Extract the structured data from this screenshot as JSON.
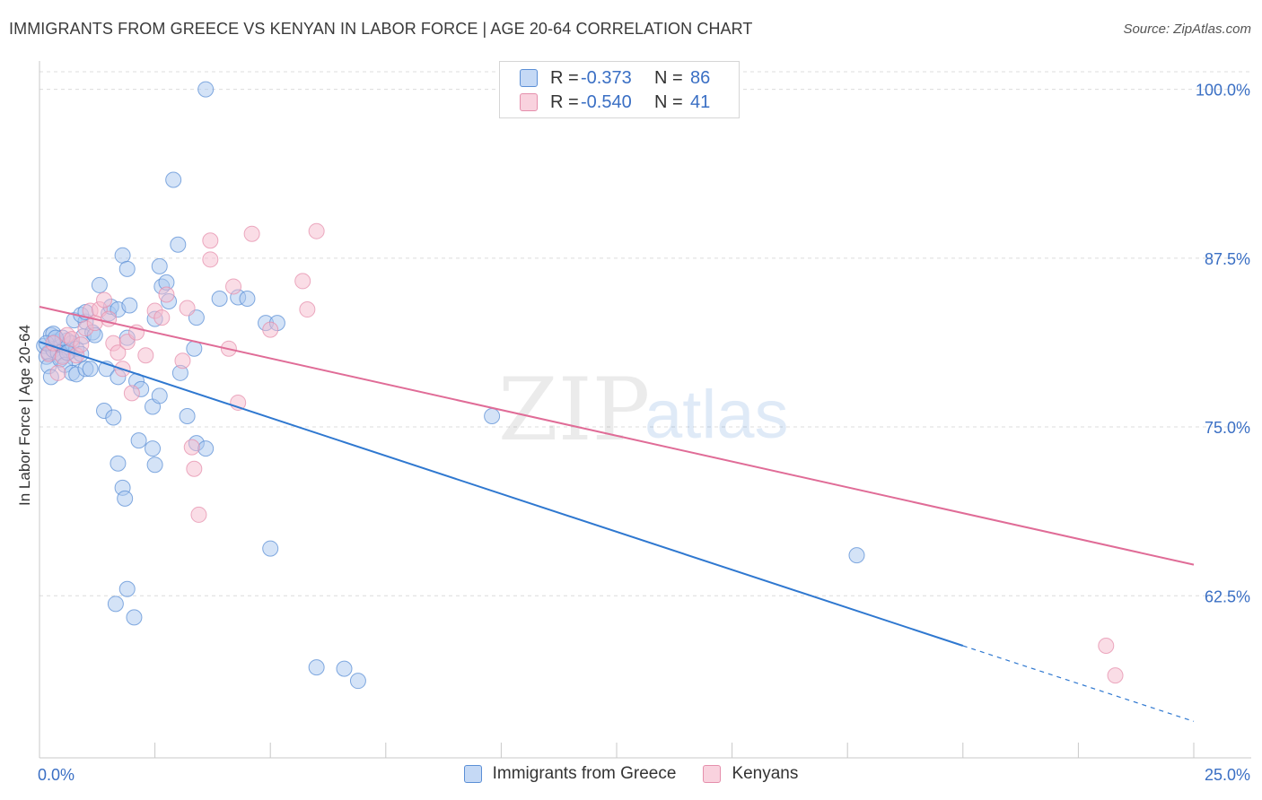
{
  "title": "IMMIGRANTS FROM GREECE VS KENYAN IN LABOR FORCE | AGE 20-64 CORRELATION CHART",
  "source": "Source: ZipAtlas.com",
  "watermark": {
    "zip": "ZIP",
    "atlas": "atlas"
  },
  "legend_top": [
    {
      "r_label": "R =",
      "r_value": "-0.373",
      "n_label": "N =",
      "n_value": "86"
    },
    {
      "r_label": "R =",
      "r_value": "-0.540",
      "n_label": "N =",
      "n_value": "41"
    }
  ],
  "legend_bottom": [
    {
      "label": "Immigrants from Greece"
    },
    {
      "label": "Kenyans"
    }
  ],
  "colors": {
    "blue_fill": "#a9c7ef",
    "blue_stroke": "#5b8fd6",
    "blue_line": "#2f78d0",
    "pink_fill": "#f6bccd",
    "pink_stroke": "#e58fac",
    "pink_line": "#e06c97",
    "tick_label": "#3a6fc4",
    "grid": "#dcdcdc"
  },
  "chart_data": {
    "type": "scatter",
    "title": "IMMIGRANTS FROM GREECE VS KENYAN IN LABOR FORCE | AGE 20-64 CORRELATION CHART",
    "xlabel": "",
    "ylabel": "In Labor Force | Age 20-64",
    "xlim": [
      0,
      25
    ],
    "ylim": [
      50.5,
      101.3
    ],
    "x_tick_labels": [
      {
        "value": 0,
        "label": "0.0%"
      },
      {
        "value": 25,
        "label": "25.0%"
      }
    ],
    "y_tick_labels": [
      {
        "value": 100,
        "label": "100.0%"
      },
      {
        "value": 87.5,
        "label": "87.5%"
      },
      {
        "value": 75,
        "label": "75.0%"
      },
      {
        "value": 62.5,
        "label": "62.5%"
      }
    ],
    "series": [
      {
        "name": "Immigrants from Greece",
        "r": -0.373,
        "n": 86,
        "trend": {
          "x0": 0,
          "y0": 81.3,
          "x1": 20,
          "y1": 58.8,
          "dash_to_x": 25,
          "dash_to_y": 53.2
        },
        "points": [
          [
            0.1,
            81.0
          ],
          [
            0.15,
            80.2
          ],
          [
            0.2,
            80.5
          ],
          [
            0.25,
            81.8
          ],
          [
            0.3,
            80.7
          ],
          [
            0.35,
            81.3
          ],
          [
            0.4,
            80.5
          ],
          [
            0.45,
            81.1
          ],
          [
            0.5,
            80.3
          ],
          [
            0.55,
            80.9
          ],
          [
            0.6,
            81.4
          ],
          [
            0.65,
            80.6
          ],
          [
            0.7,
            81.2
          ],
          [
            0.75,
            80.1
          ],
          [
            0.8,
            80.8
          ],
          [
            0.3,
            81.9
          ],
          [
            0.5,
            81.6
          ],
          [
            0.2,
            79.5
          ],
          [
            0.25,
            78.7
          ],
          [
            0.45,
            80.0
          ],
          [
            0.55,
            79.6
          ],
          [
            0.7,
            79.0
          ],
          [
            0.8,
            78.9
          ],
          [
            0.9,
            80.4
          ],
          [
            1.0,
            79.3
          ],
          [
            1.1,
            79.3
          ],
          [
            0.15,
            81.2
          ],
          [
            0.35,
            81.6
          ],
          [
            0.6,
            80.5
          ],
          [
            0.95,
            81.7
          ],
          [
            0.75,
            82.9
          ],
          [
            1.0,
            82.8
          ],
          [
            1.15,
            82.0
          ],
          [
            1.2,
            81.8
          ],
          [
            0.9,
            83.3
          ],
          [
            1.0,
            83.5
          ],
          [
            1.5,
            83.4
          ],
          [
            1.55,
            83.9
          ],
          [
            1.7,
            83.7
          ],
          [
            1.9,
            81.6
          ],
          [
            2.5,
            83.0
          ],
          [
            1.3,
            85.5
          ],
          [
            1.8,
            87.7
          ],
          [
            1.9,
            86.7
          ],
          [
            2.6,
            86.9
          ],
          [
            2.65,
            85.4
          ],
          [
            2.75,
            85.7
          ],
          [
            2.8,
            84.3
          ],
          [
            3.0,
            88.5
          ],
          [
            2.9,
            93.3
          ],
          [
            3.35,
            80.8
          ],
          [
            3.4,
            83.1
          ],
          [
            3.9,
            84.5
          ],
          [
            4.3,
            84.6
          ],
          [
            4.9,
            82.7
          ],
          [
            5.15,
            82.7
          ],
          [
            3.6,
            100.0
          ],
          [
            1.45,
            79.3
          ],
          [
            1.7,
            78.7
          ],
          [
            2.1,
            78.4
          ],
          [
            2.2,
            77.8
          ],
          [
            2.45,
            76.5
          ],
          [
            2.6,
            77.3
          ],
          [
            3.05,
            79.0
          ],
          [
            3.2,
            75.8
          ],
          [
            1.4,
            76.2
          ],
          [
            1.6,
            75.7
          ],
          [
            1.7,
            72.3
          ],
          [
            1.8,
            70.5
          ],
          [
            1.85,
            69.7
          ],
          [
            2.15,
            74.0
          ],
          [
            2.45,
            73.4
          ],
          [
            2.5,
            72.2
          ],
          [
            3.4,
            73.8
          ],
          [
            3.6,
            73.4
          ],
          [
            5.0,
            66.0
          ],
          [
            9.8,
            75.8
          ],
          [
            17.7,
            65.5
          ],
          [
            1.9,
            63.0
          ],
          [
            1.65,
            61.9
          ],
          [
            2.05,
            60.9
          ],
          [
            6.0,
            57.2
          ],
          [
            6.6,
            57.1
          ],
          [
            6.9,
            56.2
          ],
          [
            4.5,
            84.5
          ],
          [
            1.95,
            84.0
          ]
        ]
      },
      {
        "name": "Kenyans",
        "r": -0.54,
        "n": 41,
        "trend": {
          "x0": 0,
          "y0": 83.9,
          "x1": 25,
          "y1": 64.8
        },
        "points": [
          [
            0.2,
            80.4
          ],
          [
            0.3,
            81.2
          ],
          [
            0.4,
            79.0
          ],
          [
            0.5,
            80.2
          ],
          [
            0.6,
            81.8
          ],
          [
            0.7,
            81.5
          ],
          [
            0.8,
            80.3
          ],
          [
            0.9,
            81.1
          ],
          [
            1.0,
            82.3
          ],
          [
            1.1,
            83.6
          ],
          [
            1.2,
            82.7
          ],
          [
            1.3,
            83.7
          ],
          [
            1.4,
            84.4
          ],
          [
            1.5,
            83.0
          ],
          [
            1.6,
            81.2
          ],
          [
            1.7,
            80.5
          ],
          [
            1.8,
            79.3
          ],
          [
            1.9,
            81.3
          ],
          [
            2.0,
            77.5
          ],
          [
            2.1,
            82.0
          ],
          [
            2.3,
            80.3
          ],
          [
            2.5,
            83.6
          ],
          [
            2.65,
            83.1
          ],
          [
            2.75,
            84.8
          ],
          [
            3.1,
            79.9
          ],
          [
            3.2,
            83.8
          ],
          [
            3.3,
            73.5
          ],
          [
            3.35,
            71.9
          ],
          [
            3.45,
            68.5
          ],
          [
            3.7,
            88.8
          ],
          [
            3.7,
            87.4
          ],
          [
            4.1,
            80.8
          ],
          [
            4.2,
            85.4
          ],
          [
            4.3,
            76.8
          ],
          [
            4.6,
            89.3
          ],
          [
            5.0,
            82.2
          ],
          [
            5.7,
            85.8
          ],
          [
            5.8,
            83.7
          ],
          [
            6.0,
            89.5
          ],
          [
            23.1,
            58.8
          ],
          [
            23.3,
            56.6
          ]
        ]
      }
    ]
  }
}
